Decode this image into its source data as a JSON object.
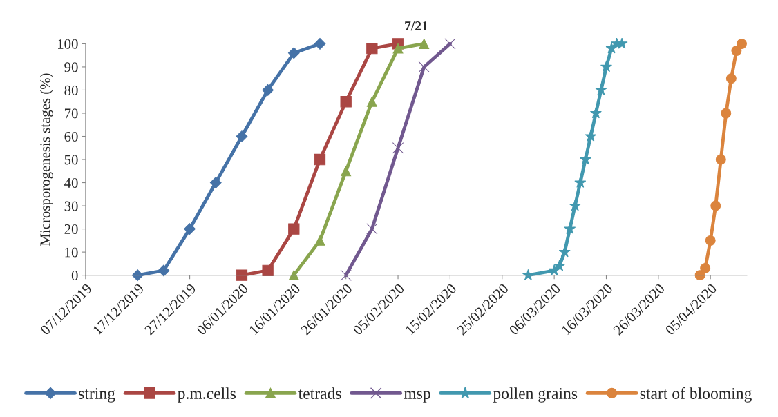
{
  "chart_data": {
    "type": "line",
    "title": "7/21",
    "ylabel": "Microsporogenesis stages (%)",
    "xlim": [
      "2019-12-07",
      "2020-04-12"
    ],
    "xticks": [
      {
        "value": "2019-12-07",
        "label": "07/12/2019"
      },
      {
        "value": "2019-12-17",
        "label": "17/12/2019"
      },
      {
        "value": "2019-12-27",
        "label": "27/12/2019"
      },
      {
        "value": "2020-01-06",
        "label": "06/01/2020"
      },
      {
        "value": "2020-01-16",
        "label": "16/01/2020"
      },
      {
        "value": "2020-01-26",
        "label": "26/01/2020"
      },
      {
        "value": "2020-02-05",
        "label": "05/02/2020"
      },
      {
        "value": "2020-02-15",
        "label": "15/02/2020"
      },
      {
        "value": "2020-02-25",
        "label": "25/02/2020"
      },
      {
        "value": "2020-03-06",
        "label": "06/03/2020"
      },
      {
        "value": "2020-03-16",
        "label": "16/03/2020"
      },
      {
        "value": "2020-03-26",
        "label": "26/03/2020"
      },
      {
        "value": "2020-04-05",
        "label": "05/04/2020"
      }
    ],
    "ylim": [
      0,
      100
    ],
    "yticks": [
      0,
      10,
      20,
      30,
      40,
      50,
      60,
      70,
      80,
      90,
      100
    ],
    "grid": false,
    "legend": "bottom",
    "line_style": "solid",
    "series": [
      {
        "name": "string",
        "color": "#4572a7",
        "marker": "diamond",
        "x": [
          "2019-12-17",
          "2019-12-22",
          "2019-12-27",
          "2020-01-01",
          "2020-01-06",
          "2020-01-11",
          "2020-01-16",
          "2020-01-21"
        ],
        "values": [
          0,
          2,
          20,
          40,
          60,
          80,
          96,
          100
        ]
      },
      {
        "name": "p.m.cells",
        "color": "#aa4643",
        "marker": "square",
        "x": [
          "2020-01-06",
          "2020-01-11",
          "2020-01-16",
          "2020-01-21",
          "2020-01-26",
          "2020-01-31",
          "2020-02-05"
        ],
        "values": [
          0,
          2,
          20,
          50,
          75,
          98,
          100
        ]
      },
      {
        "name": "tetrads",
        "color": "#89a54e",
        "marker": "triangle",
        "x": [
          "2020-01-16",
          "2020-01-21",
          "2020-01-26",
          "2020-01-31",
          "2020-02-05",
          "2020-02-10"
        ],
        "values": [
          0,
          15,
          45,
          75,
          98,
          100
        ]
      },
      {
        "name": "msp",
        "color": "#71588f",
        "marker": "cross",
        "x": [
          "2020-01-26",
          "2020-01-31",
          "2020-02-05",
          "2020-02-10",
          "2020-02-15"
        ],
        "values": [
          0,
          20,
          55,
          90,
          100
        ]
      },
      {
        "name": "pollen grains",
        "color": "#4198af",
        "marker": "star",
        "x": [
          "2020-03-01",
          "2020-03-06",
          "2020-03-07",
          "2020-03-08",
          "2020-03-09",
          "2020-03-10",
          "2020-03-11",
          "2020-03-12",
          "2020-03-13",
          "2020-03-14",
          "2020-03-15",
          "2020-03-16",
          "2020-03-17",
          "2020-03-18",
          "2020-03-19"
        ],
        "values": [
          0,
          2,
          4,
          10,
          20,
          30,
          40,
          50,
          60,
          70,
          80,
          90,
          98,
          100,
          100
        ]
      },
      {
        "name": "start of blooming",
        "color": "#db843d",
        "marker": "circle",
        "x": [
          "2020-04-03",
          "2020-04-04",
          "2020-04-05",
          "2020-04-06",
          "2020-04-07",
          "2020-04-08",
          "2020-04-09",
          "2020-04-10",
          "2020-04-11"
        ],
        "values": [
          0,
          3,
          15,
          30,
          50,
          70,
          85,
          97,
          100
        ]
      }
    ]
  }
}
